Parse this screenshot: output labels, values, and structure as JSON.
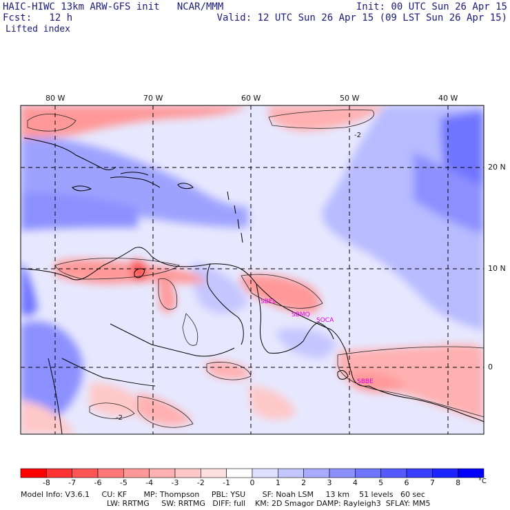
{
  "header": {
    "left_line1": "HAIC-HIWC 13km ARW-GFS init   NCAR/MMM",
    "left_line2": "Fcst:   12 h",
    "field_name": "Lifted index",
    "right_line1": "Init: 00 UTC Sun 26 Apr 15",
    "right_line2": "Valid: 12 UTC Sun 26 Apr 15 (09 LST Sun 26 Apr 15)"
  },
  "map": {
    "lon_labels": [
      "80 W",
      "70 W",
      "60 W",
      "50 W",
      "40 W"
    ],
    "lat_labels": [
      "20 N",
      "10 N",
      "0"
    ],
    "contour_labels": [
      "-2",
      "-2"
    ],
    "stations": [
      "SBEL",
      "SBMQ",
      "SOCA",
      "SBBE"
    ]
  },
  "colorbar": {
    "labels": [
      "-8",
      "-7",
      "-6",
      "-5",
      "-4",
      "-3",
      "-2",
      "-1",
      "0",
      "1",
      "2",
      "3",
      "4",
      "5",
      "6",
      "7",
      "8"
    ],
    "unit": "°C",
    "colors": [
      "#ff0000",
      "#ff3333",
      "#ff5555",
      "#ff7777",
      "#ff9999",
      "#ffb0b0",
      "#ffc8c8",
      "#ffe0e0",
      "#ffffff",
      "#dfe0ff",
      "#c4c6ff",
      "#a8abff",
      "#8c90ff",
      "#7075ff",
      "#545aff",
      "#383fff",
      "#1c24ff",
      "#0000ff"
    ]
  },
  "model_info": {
    "line1": "Model Info: V3.6.1     CU: KF       MP: Thompson     PBL: YSU       SF: Noah LSM     13 km    51 levels   60 sec",
    "line2": "LW: RRTMG     SW: RRTMG   DIFF: full    KM: 2D Smagor DAMP: Rayleigh3  SFLAY: MM5"
  }
}
